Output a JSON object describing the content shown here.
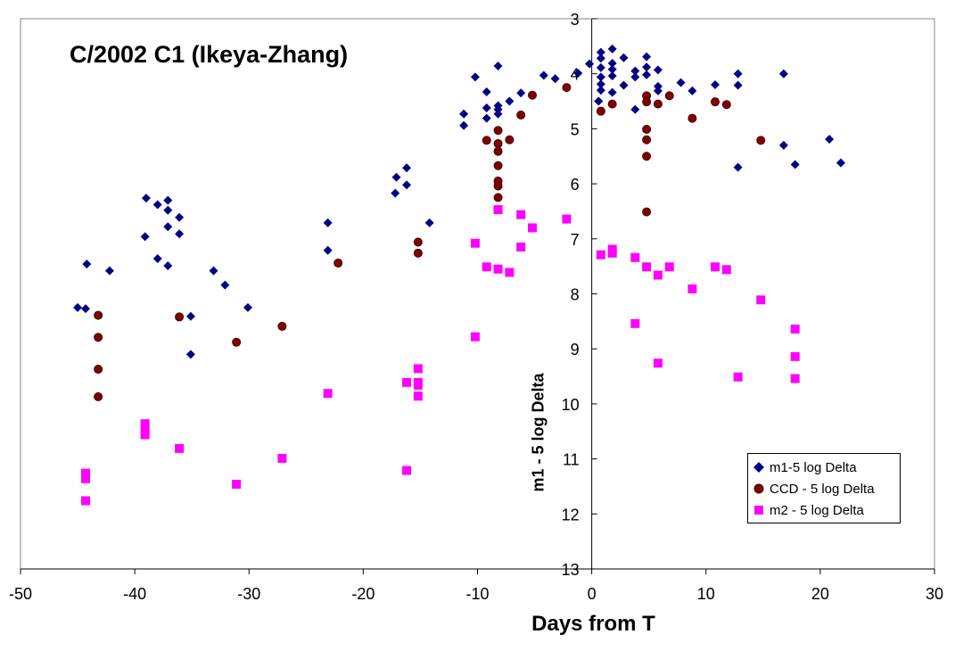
{
  "chart_data": {
    "type": "scatter",
    "title": "C/2002 C1 (Ikeya-Zhang)",
    "xlabel": "Days from T",
    "ylabel": "m1 - 5 log Delta",
    "xlim": [
      -50,
      30
    ],
    "ylim": [
      3,
      13
    ],
    "y_inverted": true,
    "x_ticks": [
      -50,
      -40,
      -30,
      -20,
      -10,
      0,
      10,
      20,
      30
    ],
    "y_ticks": [
      3,
      4,
      5,
      6,
      7,
      8,
      9,
      10,
      11,
      12,
      13
    ],
    "grid": false,
    "y_axis_position": "x=0",
    "legend_position": "bottom-right",
    "series": [
      {
        "name": "m1-5 log Delta",
        "color": "#000080",
        "marker": "diamond",
        "points": [
          [
            -45.0,
            8.25
          ],
          [
            -44.3,
            8.27
          ],
          [
            -44.2,
            7.46
          ],
          [
            -42.2,
            7.58
          ],
          [
            -39.0,
            6.26
          ],
          [
            -39.1,
            6.96
          ],
          [
            -38.0,
            6.38
          ],
          [
            -38.0,
            7.36
          ],
          [
            -37.1,
            6.3
          ],
          [
            -37.1,
            6.48
          ],
          [
            -37.1,
            6.78
          ],
          [
            -37.1,
            7.49
          ],
          [
            -36.1,
            6.61
          ],
          [
            -36.1,
            6.91
          ],
          [
            -35.1,
            8.41
          ],
          [
            -35.1,
            9.1
          ],
          [
            -33.1,
            7.58
          ],
          [
            -32.1,
            7.84
          ],
          [
            -30.1,
            8.25
          ],
          [
            -23.1,
            6.71
          ],
          [
            -23.1,
            7.21
          ],
          [
            -17.1,
            5.88
          ],
          [
            -17.2,
            6.17
          ],
          [
            -16.2,
            5.71
          ],
          [
            -16.2,
            6.02
          ],
          [
            -14.2,
            6.71
          ],
          [
            -11.2,
            4.73
          ],
          [
            -11.2,
            4.94
          ],
          [
            -10.2,
            4.06
          ],
          [
            -9.2,
            4.33
          ],
          [
            -9.2,
            4.62
          ],
          [
            -9.2,
            4.81
          ],
          [
            -8.2,
            3.86
          ],
          [
            -8.2,
            4.58
          ],
          [
            -8.2,
            4.65
          ],
          [
            -8.2,
            4.73
          ],
          [
            -7.2,
            4.5
          ],
          [
            -6.2,
            4.35
          ],
          [
            -4.2,
            4.03
          ],
          [
            -3.2,
            4.09
          ],
          [
            -1.2,
            3.99
          ],
          [
            -0.2,
            3.82
          ],
          [
            0.6,
            4.5
          ],
          [
            0.8,
            3.61
          ],
          [
            0.8,
            3.72
          ],
          [
            0.8,
            3.89
          ],
          [
            0.8,
            4.06
          ],
          [
            0.8,
            4.19
          ],
          [
            0.8,
            4.3
          ],
          [
            1.8,
            3.55
          ],
          [
            1.8,
            3.81
          ],
          [
            1.8,
            3.92
          ],
          [
            1.8,
            4.04
          ],
          [
            1.8,
            4.34
          ],
          [
            2.8,
            3.71
          ],
          [
            2.8,
            4.21
          ],
          [
            3.8,
            3.95
          ],
          [
            3.8,
            4.06
          ],
          [
            3.8,
            4.65
          ],
          [
            4.8,
            3.69
          ],
          [
            4.8,
            3.88
          ],
          [
            4.8,
            4.02
          ],
          [
            5.8,
            4.23
          ],
          [
            5.8,
            4.31
          ],
          [
            5.8,
            3.93
          ],
          [
            7.8,
            4.16
          ],
          [
            8.8,
            4.31
          ],
          [
            10.8,
            4.2
          ],
          [
            12.8,
            4.0
          ],
          [
            12.8,
            4.21
          ],
          [
            12.8,
            5.7
          ],
          [
            16.8,
            4.0
          ],
          [
            16.8,
            5.3
          ],
          [
            17.8,
            5.65
          ],
          [
            20.8,
            5.19
          ],
          [
            21.8,
            5.62
          ]
        ]
      },
      {
        "name": "CCD - 5 log Delta",
        "color": "#800000",
        "marker": "circle",
        "points": [
          [
            -43.2,
            8.39
          ],
          [
            -43.2,
            8.79
          ],
          [
            -43.2,
            9.37
          ],
          [
            -43.2,
            9.87
          ],
          [
            -36.1,
            8.42
          ],
          [
            -31.1,
            8.88
          ],
          [
            -27.1,
            8.59
          ],
          [
            -22.2,
            7.44
          ],
          [
            -15.2,
            7.06
          ],
          [
            -15.2,
            7.26
          ],
          [
            -9.2,
            5.21
          ],
          [
            -8.2,
            5.03
          ],
          [
            -8.2,
            5.27
          ],
          [
            -8.2,
            5.41
          ],
          [
            -8.2,
            5.67
          ],
          [
            -8.2,
            5.95
          ],
          [
            -8.2,
            6.04
          ],
          [
            -8.2,
            6.25
          ],
          [
            -7.2,
            5.2
          ],
          [
            -6.2,
            4.75
          ],
          [
            -5.2,
            4.39
          ],
          [
            -2.2,
            4.25
          ],
          [
            0.8,
            4.68
          ],
          [
            1.8,
            4.55
          ],
          [
            4.8,
            4.4
          ],
          [
            4.8,
            4.51
          ],
          [
            4.8,
            5.01
          ],
          [
            4.8,
            5.2
          ],
          [
            4.8,
            5.5
          ],
          [
            4.8,
            6.51
          ],
          [
            4.8,
            7.51
          ],
          [
            5.8,
            4.55
          ],
          [
            6.8,
            4.4
          ],
          [
            8.8,
            4.81
          ],
          [
            10.8,
            4.51
          ],
          [
            11.8,
            4.56
          ],
          [
            14.8,
            5.21
          ]
        ]
      },
      {
        "name": "m2 - 5 log Delta",
        "color": "#ff00ff",
        "marker": "square",
        "points": [
          [
            -44.3,
            11.26
          ],
          [
            -44.3,
            11.36
          ],
          [
            -44.3,
            11.76
          ],
          [
            -39.1,
            10.36
          ],
          [
            -39.1,
            10.46
          ],
          [
            -39.1,
            10.56
          ],
          [
            -36.1,
            10.81
          ],
          [
            -31.1,
            11.46
          ],
          [
            -27.1,
            10.99
          ],
          [
            -23.1,
            9.81
          ],
          [
            -16.2,
            9.61
          ],
          [
            -16.2,
            11.21
          ],
          [
            -15.2,
            9.36
          ],
          [
            -15.2,
            9.61
          ],
          [
            -15.2,
            9.66
          ],
          [
            -15.2,
            9.86
          ],
          [
            -10.2,
            7.08
          ],
          [
            -10.2,
            8.78
          ],
          [
            -9.2,
            7.51
          ],
          [
            -8.2,
            6.47
          ],
          [
            -8.2,
            7.55
          ],
          [
            -7.2,
            7.61
          ],
          [
            -6.2,
            6.56
          ],
          [
            -6.2,
            7.15
          ],
          [
            -5.2,
            6.8
          ],
          [
            -2.2,
            6.64
          ],
          [
            0.8,
            7.29
          ],
          [
            1.8,
            7.19
          ],
          [
            1.8,
            7.26
          ],
          [
            3.8,
            7.34
          ],
          [
            3.8,
            8.54
          ],
          [
            4.8,
            7.51
          ],
          [
            5.8,
            7.66
          ],
          [
            5.8,
            9.26
          ],
          [
            6.8,
            7.51
          ],
          [
            8.8,
            7.91
          ],
          [
            10.8,
            7.51
          ],
          [
            11.8,
            7.56
          ],
          [
            12.8,
            9.51
          ],
          [
            14.8,
            8.11
          ],
          [
            17.8,
            8.64
          ],
          [
            17.8,
            9.14
          ],
          [
            17.8,
            9.54
          ]
        ]
      }
    ]
  },
  "legend": {
    "items": [
      {
        "label": "m1-5 log Delta",
        "color": "#000080"
      },
      {
        "label": "CCD - 5 log Delta",
        "color": "#800000"
      },
      {
        "label": "m2 - 5 log Delta",
        "color": "#ff00ff"
      }
    ]
  }
}
